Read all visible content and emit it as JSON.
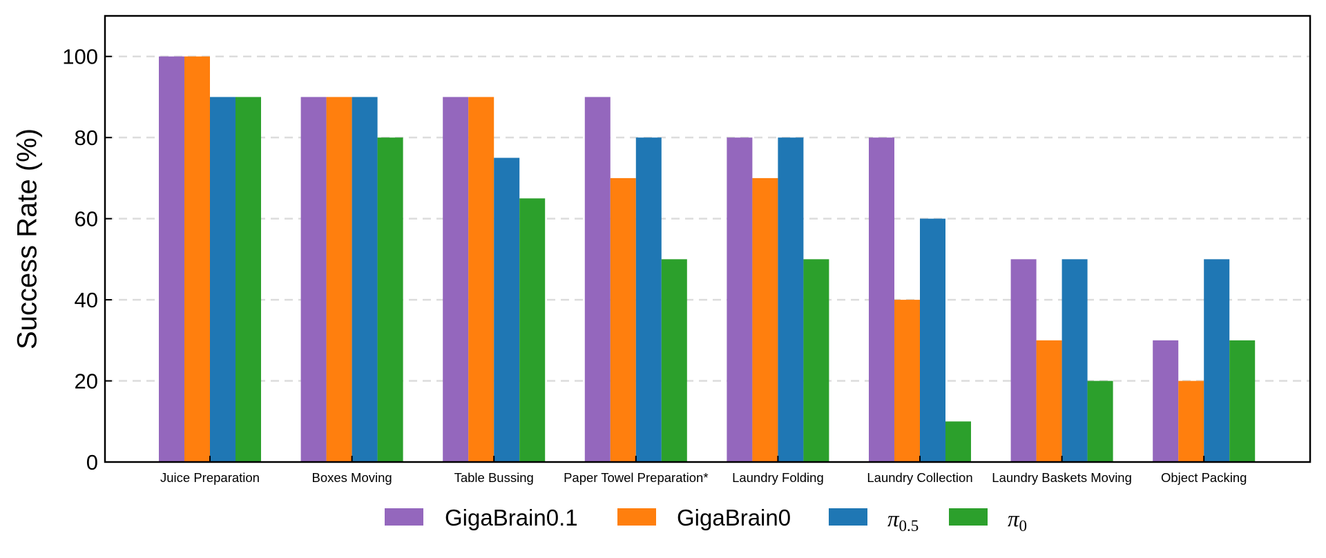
{
  "chart_data": {
    "type": "bar",
    "title": "",
    "xlabel": "",
    "ylabel": "Success Rate (%)",
    "ylim": [
      0,
      110
    ],
    "yticks": [
      0,
      20,
      40,
      60,
      80,
      100
    ],
    "grid": "horizontal dashed",
    "legend_position": "bottom-center",
    "categories": [
      "Juice Preparation",
      "Boxes Moving",
      "Table Bussing",
      "Paper Towel Preparation*",
      "Laundry Folding",
      "Laundry Collection",
      "Laundry Baskets Moving",
      "Object Packing"
    ],
    "series": [
      {
        "name": "GigaBrain0.1",
        "color": "#9467bd",
        "values": [
          100,
          90,
          90,
          90,
          80,
          80,
          50,
          30
        ]
      },
      {
        "name": "GigaBrain0",
        "color": "#ff7f0e",
        "values": [
          100,
          90,
          90,
          70,
          70,
          40,
          30,
          20
        ]
      },
      {
        "name": "π0.5",
        "name_base": "π",
        "name_sub": "0.5",
        "color": "#1f77b4",
        "values": [
          90,
          90,
          75,
          80,
          80,
          60,
          50,
          50
        ]
      },
      {
        "name": "π0",
        "name_base": "π",
        "name_sub": "0",
        "color": "#2ca02c",
        "values": [
          90,
          80,
          65,
          50,
          50,
          10,
          20,
          30
        ]
      }
    ]
  }
}
